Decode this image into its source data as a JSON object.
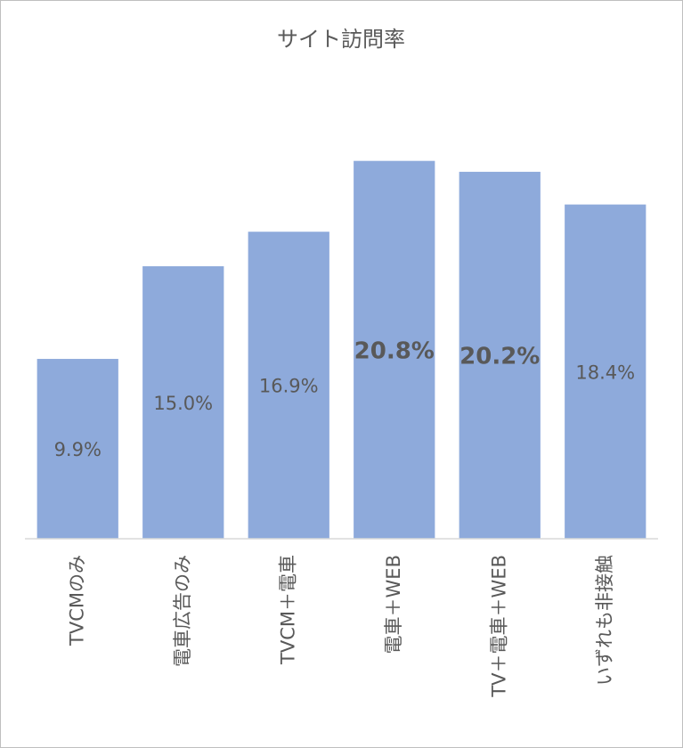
{
  "chart_data": {
    "type": "bar",
    "title": "サイト訪問率",
    "categories": [
      "TVCMのみ",
      "電車広告のみ",
      "TVCM＋電車",
      "電車＋WEB",
      "TV＋電車＋WEB",
      "いずれも非接触"
    ],
    "values": [
      9.9,
      15.0,
      16.9,
      20.8,
      20.2,
      18.4
    ],
    "value_labels": [
      "9.9%",
      "15.0%",
      "16.9%",
      "20.8%",
      "20.2%",
      "18.4%"
    ],
    "value_label_bold": [
      false,
      false,
      false,
      true,
      true,
      false
    ],
    "color": "#8eaadb",
    "ylim": [
      0,
      25
    ]
  }
}
